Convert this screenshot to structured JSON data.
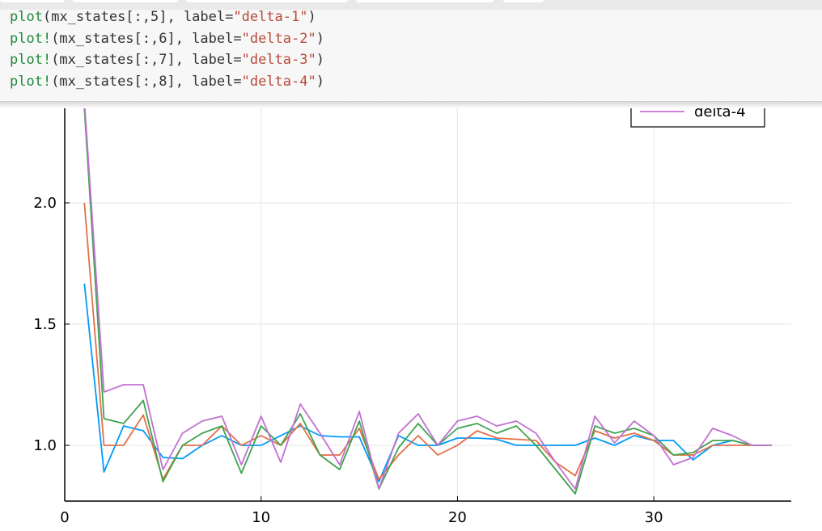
{
  "code": {
    "lines": [
      [
        {
          "t": "plot",
          "c": "fn"
        },
        {
          "t": "(mx_states[:,5], label=",
          "c": "plain"
        },
        {
          "t": "\"delta-1\"",
          "c": "str"
        },
        {
          "t": ")",
          "c": "plain"
        }
      ],
      [
        {
          "t": "plot!",
          "c": "fn"
        },
        {
          "t": "(mx_states[:,6], label=",
          "c": "plain"
        },
        {
          "t": "\"delta-2\"",
          "c": "str"
        },
        {
          "t": ")",
          "c": "plain"
        }
      ],
      [
        {
          "t": "plot!",
          "c": "fn"
        },
        {
          "t": "(mx_states[:,7], label=",
          "c": "plain"
        },
        {
          "t": "\"delta-3\"",
          "c": "str"
        },
        {
          "t": ")",
          "c": "plain"
        }
      ],
      [
        {
          "t": "plot!",
          "c": "fn"
        },
        {
          "t": "(mx_states[:,8], label=",
          "c": "plain"
        },
        {
          "t": "\"delta-4\"",
          "c": "str"
        },
        {
          "t": ")",
          "c": "plain"
        }
      ]
    ]
  },
  "chart_data": {
    "type": "line",
    "xlim": [
      0,
      37
    ],
    "ylim": [
      0.77,
      2.42
    ],
    "xticks": [
      0,
      10,
      20,
      30
    ],
    "xtick_labels": [
      "0",
      "10",
      "20",
      "30"
    ],
    "yticks": [
      1.0,
      1.5,
      2.0
    ],
    "ytick_labels": [
      "1.0",
      "1.5",
      "2.0"
    ],
    "grid": true,
    "legend_position": "top-right",
    "legend_visible_entries": [
      "delta-4"
    ],
    "series": [
      {
        "name": "delta-1",
        "color": "#009AFA",
        "x": [
          1,
          2,
          3,
          4,
          5,
          6,
          7,
          8,
          9,
          10,
          11,
          12,
          13,
          14,
          15,
          16,
          17,
          18,
          19,
          20,
          21,
          22,
          23,
          24,
          25,
          26,
          27,
          28,
          29,
          30,
          31,
          32,
          33,
          34,
          35,
          36
        ],
        "y": [
          1.667,
          0.89,
          1.08,
          1.06,
          0.95,
          0.945,
          1.0,
          1.04,
          1.0,
          1.0,
          1.04,
          1.08,
          1.04,
          1.035,
          1.035,
          0.85,
          1.04,
          1.0,
          1.0,
          1.03,
          1.03,
          1.025,
          1.0,
          1.0,
          1.0,
          1.0,
          1.03,
          1.0,
          1.04,
          1.02,
          1.02,
          0.94,
          1.0,
          1.02,
          1.0,
          1.0
        ]
      },
      {
        "name": "delta-2",
        "color": "#E36F47",
        "x": [
          1,
          2,
          3,
          4,
          5,
          6,
          7,
          8,
          9,
          10,
          11,
          12,
          13,
          14,
          15,
          16,
          17,
          18,
          19,
          20,
          21,
          22,
          23,
          24,
          25,
          26,
          27,
          28,
          29,
          30,
          31,
          32,
          33,
          34,
          35,
          36
        ],
        "y": [
          2.0,
          1.0,
          1.0,
          1.125,
          0.86,
          1.0,
          1.0,
          1.08,
          1.0,
          1.04,
          1.0,
          1.09,
          0.96,
          0.96,
          1.07,
          0.86,
          0.96,
          1.04,
          0.96,
          1.0,
          1.06,
          1.03,
          1.025,
          1.02,
          0.93,
          0.875,
          1.06,
          1.03,
          1.05,
          1.02,
          0.96,
          0.96,
          1.0,
          1.0,
          1.0,
          1.0
        ]
      },
      {
        "name": "delta-3",
        "color": "#3EA44E",
        "x": [
          1,
          2,
          3,
          4,
          5,
          6,
          7,
          8,
          9,
          10,
          11,
          12,
          13,
          14,
          15,
          16,
          17,
          18,
          19,
          20,
          21,
          22,
          23,
          24,
          25,
          26,
          27,
          28,
          29,
          30,
          31,
          32,
          33,
          34,
          35,
          36
        ],
        "y": [
          2.39,
          1.11,
          1.09,
          1.185,
          0.85,
          1.0,
          1.05,
          1.08,
          0.885,
          1.08,
          1.0,
          1.13,
          0.96,
          0.9,
          1.1,
          0.82,
          0.99,
          1.09,
          1.0,
          1.07,
          1.09,
          1.05,
          1.08,
          1.0,
          0.9,
          0.8,
          1.08,
          1.05,
          1.07,
          1.04,
          0.96,
          0.97,
          1.02,
          1.02,
          1.0,
          1.0
        ]
      },
      {
        "name": "delta-4",
        "color": "#C271D2",
        "x": [
          1,
          2,
          3,
          4,
          5,
          6,
          7,
          8,
          9,
          10,
          11,
          12,
          13,
          14,
          15,
          16,
          17,
          18,
          19,
          20,
          21,
          22,
          23,
          24,
          25,
          26,
          27,
          28,
          29,
          30,
          31,
          32,
          33,
          34,
          35,
          36
        ],
        "y": [
          2.42,
          1.22,
          1.25,
          1.25,
          0.9,
          1.05,
          1.1,
          1.12,
          0.92,
          1.12,
          0.93,
          1.17,
          1.05,
          0.92,
          1.14,
          0.82,
          1.05,
          1.13,
          1.0,
          1.1,
          1.12,
          1.08,
          1.1,
          1.05,
          0.93,
          0.82,
          1.12,
          1.01,
          1.1,
          1.04,
          0.92,
          0.95,
          1.07,
          1.04,
          1.0,
          1.0
        ]
      }
    ]
  }
}
